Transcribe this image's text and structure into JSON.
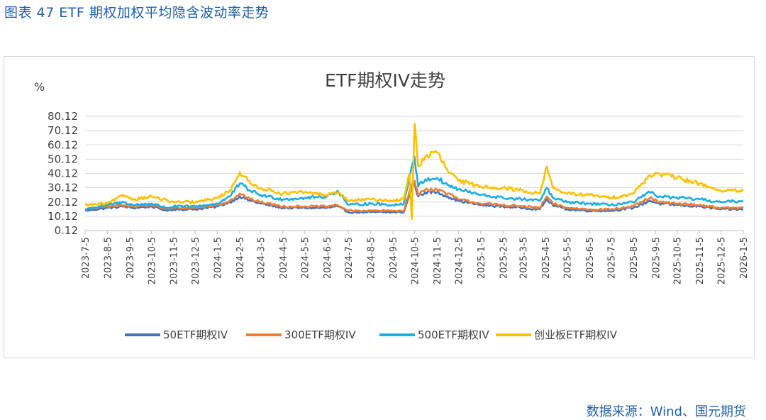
{
  "figure_title": "图表 47 ETF 期权加权平均隐含波动率走势",
  "source_text": "数据来源：Wind、国元期货",
  "chart_data": {
    "type": "line",
    "title": "ETF期权IV走势",
    "ylabel": "%",
    "xlabel": "",
    "ylim": [
      0.12,
      80.12
    ],
    "yticks": [
      "0.12",
      "10.12",
      "20.12",
      "30.12",
      "40.12",
      "50.12",
      "60.12",
      "70.12",
      "80.12"
    ],
    "x_start": "2023-07-05",
    "x_end": "2026-01-05",
    "xticks": [
      "2023-7-5",
      "2023-8-5",
      "2023-9-5",
      "2023-10-5",
      "2023-11-5",
      "2023-12-5",
      "2024-1-5",
      "2024-2-5",
      "2024-3-5",
      "2024-4-5",
      "2024-5-5",
      "2024-6-5",
      "2024-7-5",
      "2024-8-5",
      "2024-9-5",
      "2024-10-5",
      "2024-11-5",
      "2024-12-5",
      "2025-1-5",
      "2025-2-5",
      "2025-3-5",
      "2025-4-5",
      "2025-5-5",
      "2025-6-5",
      "2025-7-5",
      "2025-8-5",
      "2025-9-5",
      "2025-10-5",
      "2025-11-5",
      "2025-12-5",
      "2026-1-5"
    ],
    "grid": true,
    "legend_position": "bottom",
    "series": [
      {
        "name": "50ETF期权IV",
        "color": "#4472C4",
        "points": [
          [
            "2023-07-05",
            14
          ],
          [
            "2023-08-05",
            16
          ],
          [
            "2023-08-28",
            17
          ],
          [
            "2023-09-10",
            16
          ],
          [
            "2023-10-05",
            17
          ],
          [
            "2023-10-28",
            14
          ],
          [
            "2023-11-05",
            15
          ],
          [
            "2023-12-05",
            15
          ],
          [
            "2024-01-05",
            17
          ],
          [
            "2024-01-22",
            20
          ],
          [
            "2024-02-05",
            24
          ],
          [
            "2024-02-20",
            21
          ],
          [
            "2024-03-05",
            19
          ],
          [
            "2024-04-05",
            16
          ],
          [
            "2024-05-05",
            16
          ],
          [
            "2024-06-05",
            16
          ],
          [
            "2024-06-20",
            17
          ],
          [
            "2024-07-05",
            13
          ],
          [
            "2024-08-05",
            13
          ],
          [
            "2024-09-05",
            13
          ],
          [
            "2024-09-20",
            13
          ],
          [
            "2024-09-28",
            25
          ],
          [
            "2024-10-01",
            30
          ],
          [
            "2024-10-05",
            33
          ],
          [
            "2024-10-10",
            24
          ],
          [
            "2024-10-20",
            27
          ],
          [
            "2024-11-05",
            27
          ],
          [
            "2024-11-20",
            24
          ],
          [
            "2024-12-05",
            21
          ],
          [
            "2025-01-05",
            18
          ],
          [
            "2025-02-05",
            17
          ],
          [
            "2025-03-05",
            16
          ],
          [
            "2025-03-28",
            15
          ],
          [
            "2025-04-07",
            22
          ],
          [
            "2025-04-15",
            18
          ],
          [
            "2025-05-05",
            15
          ],
          [
            "2025-06-05",
            14
          ],
          [
            "2025-07-05",
            14
          ],
          [
            "2025-08-05",
            16
          ],
          [
            "2025-08-28",
            21
          ],
          [
            "2025-09-10",
            19
          ],
          [
            "2025-10-05",
            18
          ],
          [
            "2025-11-05",
            17
          ],
          [
            "2025-12-05",
            15
          ],
          [
            "2026-01-05",
            15
          ]
        ]
      },
      {
        "name": "300ETF期权IV",
        "color": "#ED7D31",
        "points": [
          [
            "2023-07-05",
            15
          ],
          [
            "2023-08-05",
            17
          ],
          [
            "2023-08-28",
            18
          ],
          [
            "2023-09-10",
            17
          ],
          [
            "2023-10-05",
            18
          ],
          [
            "2023-10-28",
            15
          ],
          [
            "2023-11-05",
            16
          ],
          [
            "2023-12-05",
            16
          ],
          [
            "2024-01-05",
            18
          ],
          [
            "2024-01-22",
            21
          ],
          [
            "2024-02-05",
            26
          ],
          [
            "2024-02-20",
            22
          ],
          [
            "2024-03-05",
            20
          ],
          [
            "2024-04-05",
            17
          ],
          [
            "2024-05-05",
            17
          ],
          [
            "2024-06-05",
            17
          ],
          [
            "2024-06-20",
            18
          ],
          [
            "2024-07-05",
            14
          ],
          [
            "2024-08-05",
            14
          ],
          [
            "2024-09-05",
            14
          ],
          [
            "2024-09-20",
            14
          ],
          [
            "2024-09-28",
            28
          ],
          [
            "2024-10-01",
            32
          ],
          [
            "2024-10-05",
            35
          ],
          [
            "2024-10-10",
            25
          ],
          [
            "2024-10-20",
            29
          ],
          [
            "2024-11-05",
            29
          ],
          [
            "2024-11-20",
            26
          ],
          [
            "2024-12-05",
            22
          ],
          [
            "2025-01-05",
            19
          ],
          [
            "2025-02-05",
            18
          ],
          [
            "2025-03-05",
            17
          ],
          [
            "2025-03-28",
            16
          ],
          [
            "2025-04-07",
            24
          ],
          [
            "2025-04-15",
            19
          ],
          [
            "2025-05-05",
            16
          ],
          [
            "2025-06-05",
            15
          ],
          [
            "2025-07-05",
            15
          ],
          [
            "2025-08-05",
            17
          ],
          [
            "2025-08-28",
            23
          ],
          [
            "2025-09-10",
            20
          ],
          [
            "2025-10-05",
            19
          ],
          [
            "2025-11-05",
            18
          ],
          [
            "2025-12-05",
            16
          ],
          [
            "2026-01-05",
            16
          ]
        ]
      },
      {
        "name": "500ETF期权IV",
        "color": "#1CADE4",
        "points": [
          [
            "2023-07-05",
            15
          ],
          [
            "2023-08-05",
            18
          ],
          [
            "2023-08-28",
            20
          ],
          [
            "2023-09-10",
            18
          ],
          [
            "2023-10-05",
            19
          ],
          [
            "2023-10-28",
            16
          ],
          [
            "2023-11-05",
            17
          ],
          [
            "2023-12-05",
            17
          ],
          [
            "2024-01-05",
            19
          ],
          [
            "2024-01-22",
            24
          ],
          [
            "2024-02-05",
            33
          ],
          [
            "2024-02-20",
            28
          ],
          [
            "2024-03-05",
            25
          ],
          [
            "2024-04-05",
            22
          ],
          [
            "2024-05-05",
            23
          ],
          [
            "2024-06-05",
            24
          ],
          [
            "2024-06-20",
            28
          ],
          [
            "2024-07-05",
            18
          ],
          [
            "2024-08-05",
            19
          ],
          [
            "2024-09-05",
            18
          ],
          [
            "2024-09-20",
            19
          ],
          [
            "2024-09-28",
            38
          ],
          [
            "2024-10-01",
            45
          ],
          [
            "2024-10-05",
            52
          ],
          [
            "2024-10-10",
            31
          ],
          [
            "2024-10-20",
            36
          ],
          [
            "2024-11-05",
            37
          ],
          [
            "2024-11-20",
            32
          ],
          [
            "2024-12-05",
            29
          ],
          [
            "2025-01-05",
            25
          ],
          [
            "2025-02-05",
            23
          ],
          [
            "2025-03-05",
            22
          ],
          [
            "2025-03-28",
            21
          ],
          [
            "2025-04-07",
            30
          ],
          [
            "2025-04-15",
            23
          ],
          [
            "2025-05-05",
            20
          ],
          [
            "2025-06-05",
            19
          ],
          [
            "2025-07-05",
            18
          ],
          [
            "2025-08-05",
            20
          ],
          [
            "2025-08-28",
            27
          ],
          [
            "2025-09-10",
            24
          ],
          [
            "2025-10-05",
            23
          ],
          [
            "2025-11-05",
            22
          ],
          [
            "2025-12-05",
            20
          ],
          [
            "2026-01-05",
            21
          ]
        ]
      },
      {
        "name": "创业板ETF期权IV",
        "color": "#FFC000",
        "points": [
          [
            "2023-07-05",
            18
          ],
          [
            "2023-08-05",
            19
          ],
          [
            "2023-08-28",
            25
          ],
          [
            "2023-09-10",
            22
          ],
          [
            "2023-10-05",
            24
          ],
          [
            "2023-10-28",
            21
          ],
          [
            "2023-11-05",
            20
          ],
          [
            "2023-12-05",
            20
          ],
          [
            "2024-01-05",
            23
          ],
          [
            "2024-01-22",
            28
          ],
          [
            "2024-02-05",
            41
          ],
          [
            "2024-02-20",
            33
          ],
          [
            "2024-03-05",
            30
          ],
          [
            "2024-04-05",
            26
          ],
          [
            "2024-05-05",
            27
          ],
          [
            "2024-06-05",
            25
          ],
          [
            "2024-06-20",
            27
          ],
          [
            "2024-07-05",
            21
          ],
          [
            "2024-08-05",
            22
          ],
          [
            "2024-09-05",
            21
          ],
          [
            "2024-09-20",
            22
          ],
          [
            "2024-09-28",
            40
          ],
          [
            "2024-10-01",
            8
          ],
          [
            "2024-10-05",
            75
          ],
          [
            "2024-10-10",
            45
          ],
          [
            "2024-10-20",
            52
          ],
          [
            "2024-11-05",
            55
          ],
          [
            "2024-11-20",
            42
          ],
          [
            "2024-12-05",
            35
          ],
          [
            "2025-01-05",
            31
          ],
          [
            "2025-02-05",
            30
          ],
          [
            "2025-03-05",
            28
          ],
          [
            "2025-03-28",
            26
          ],
          [
            "2025-04-07",
            45
          ],
          [
            "2025-04-15",
            30
          ],
          [
            "2025-05-05",
            26
          ],
          [
            "2025-06-05",
            25
          ],
          [
            "2025-07-05",
            23
          ],
          [
            "2025-08-05",
            26
          ],
          [
            "2025-08-28",
            39
          ],
          [
            "2025-09-10",
            40
          ],
          [
            "2025-10-05",
            37
          ],
          [
            "2025-11-05",
            33
          ],
          [
            "2025-12-05",
            28
          ],
          [
            "2026-01-05",
            28
          ]
        ]
      }
    ]
  }
}
